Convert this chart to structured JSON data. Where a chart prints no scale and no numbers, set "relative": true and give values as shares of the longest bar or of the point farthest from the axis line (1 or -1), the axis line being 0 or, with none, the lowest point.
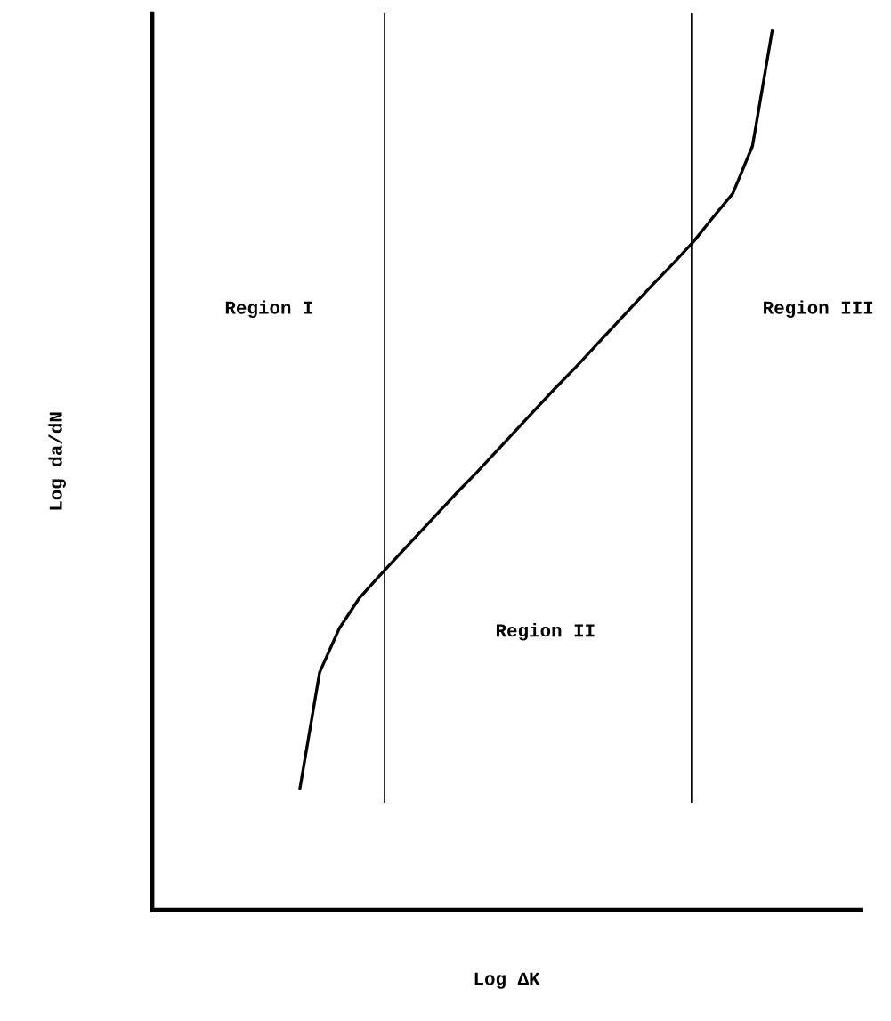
{
  "chart_data": {
    "type": "line",
    "relative": true,
    "xlabel": "Log ΔK",
    "ylabel": "Log da/dN",
    "categories": [
      null,
      null,
      null,
      null,
      null,
      null,
      null,
      null,
      null,
      null,
      null,
      null,
      null,
      null,
      null,
      null,
      null,
      null,
      null,
      null,
      null,
      null,
      null,
      null,
      null,
      null,
      null,
      null,
      null,
      null,
      null,
      null,
      null,
      null,
      null,
      null
    ],
    "series": [
      {
        "color": "#000000",
        "values": [
          null,
          null,
          null,
          null,
          null,
          null,
          null,
          0.138,
          0.27,
          0.32,
          0.354,
          0.379,
          0.403,
          0.427,
          0.451,
          0.475,
          0.498,
          0.522,
          0.546,
          0.57,
          0.594,
          0.617,
          0.641,
          0.665,
          0.689,
          0.713,
          0.736,
          0.76,
          0.788,
          0.815,
          0.869,
          1.0,
          null,
          null,
          null,
          null
        ]
      }
    ],
    "annotations": [
      "Region I",
      "Region II",
      "Region III"
    ],
    "tick_labels": false,
    "grid": false,
    "legend": false,
    "marker": "none",
    "line_style": "solid"
  }
}
